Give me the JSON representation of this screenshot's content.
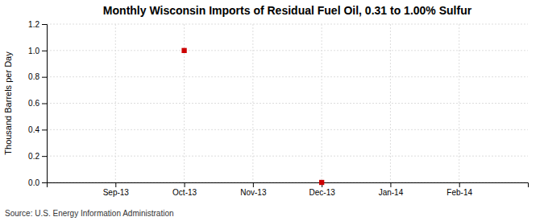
{
  "chart_data": {
    "type": "scatter",
    "title": "Monthly Wisconsin Imports of Residual Fuel Oil, 0.31 to 1.00% Sulfur",
    "ylabel": "Thousand Barrels per Day",
    "source": "Source: U.S. Energy Information Administration",
    "categories": [
      "Sep-13",
      "Oct-13",
      "Nov-13",
      "Dec-13",
      "Jan-14",
      "Feb-14"
    ],
    "values": [
      null,
      1.0,
      null,
      0.0,
      null,
      null
    ],
    "color": "#cc0000",
    "marker": "square",
    "ylim": [
      0.0,
      1.2
    ],
    "yticks": [
      {
        "value": 0.0,
        "label": "0.0"
      },
      0.2,
      0.4,
      0.6,
      0.8,
      {
        "value": 1.0,
        "label": "1.0"
      },
      1.2
    ],
    "grid": true
  }
}
